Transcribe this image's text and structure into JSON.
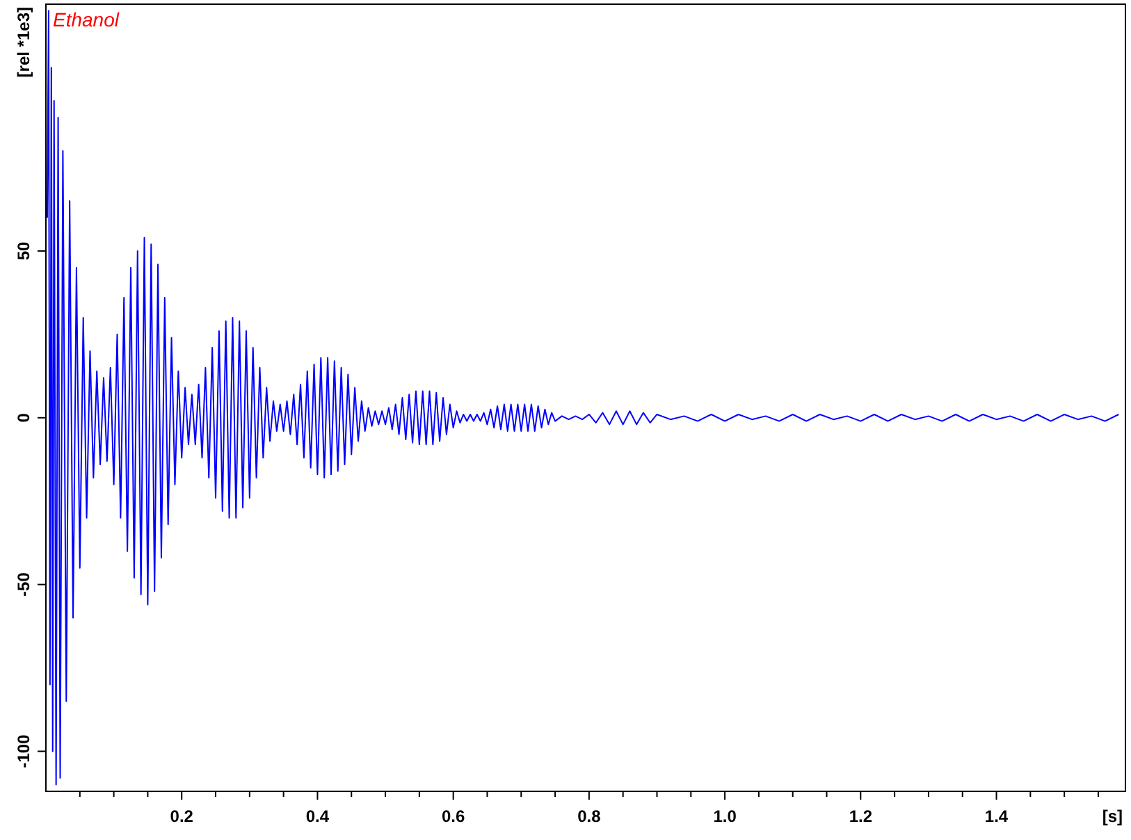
{
  "chart_data": {
    "type": "line",
    "xlabel": "[s]",
    "ylabel": "[rel *1e3]",
    "annotations": [
      "Ethanol"
    ],
    "xlim": [
      0,
      1.59
    ],
    "ylim": [
      -112,
      124
    ],
    "xticks": [
      {
        "value": 0.05,
        "label": null
      },
      {
        "value": 0.1,
        "label": null
      },
      {
        "value": 0.15,
        "label": null
      },
      0.2,
      {
        "value": 0.25,
        "label": null
      },
      {
        "value": 0.3,
        "label": null
      },
      {
        "value": 0.35,
        "label": null
      },
      0.4,
      {
        "value": 0.45,
        "label": null
      },
      {
        "value": 0.5,
        "label": null
      },
      {
        "value": 0.55,
        "label": null
      },
      0.6,
      {
        "value": 0.65,
        "label": null
      },
      {
        "value": 0.7,
        "label": null
      },
      {
        "value": 0.75,
        "label": null
      },
      0.8,
      {
        "value": 0.85,
        "label": null
      },
      {
        "value": 0.9,
        "label": null
      },
      {
        "value": 0.95,
        "label": null
      },
      {
        "value": 1,
        "label": "1.0"
      },
      {
        "value": 1.05,
        "label": null
      },
      {
        "value": 1.1,
        "label": null
      },
      {
        "value": 1.15,
        "label": null
      },
      1.2,
      {
        "value": 1.25,
        "label": null
      },
      {
        "value": 1.3,
        "label": null
      },
      {
        "value": 1.35,
        "label": null
      },
      1.4,
      {
        "value": 1.45,
        "label": null
      },
      {
        "value": 1.5,
        "label": null
      },
      {
        "value": 1.55,
        "label": null
      }
    ],
    "yticks": [
      -100,
      -50,
      0,
      50
    ],
    "grid": false,
    "marker": "none",
    "line_style": "solid",
    "series": [
      {
        "color": "#0000ff",
        "x": [
          0.002,
          0.004,
          0.006,
          0.008,
          0.01,
          0.012,
          0.015,
          0.018,
          0.021,
          0.025,
          0.03,
          0.035,
          0.04,
          0.045,
          0.05,
          0.055,
          0.06,
          0.065,
          0.07,
          0.075,
          0.08,
          0.085,
          0.09,
          0.095,
          0.1,
          0.105,
          0.11,
          0.115,
          0.12,
          0.125,
          0.13,
          0.135,
          0.14,
          0.145,
          0.15,
          0.155,
          0.16,
          0.165,
          0.17,
          0.175,
          0.18,
          0.185,
          0.19,
          0.195,
          0.2,
          0.205,
          0.21,
          0.215,
          0.22,
          0.225,
          0.23,
          0.235,
          0.24,
          0.245,
          0.25,
          0.255,
          0.26,
          0.265,
          0.27,
          0.275,
          0.28,
          0.285,
          0.29,
          0.295,
          0.3,
          0.305,
          0.31,
          0.315,
          0.32,
          0.325,
          0.33,
          0.335,
          0.34,
          0.345,
          0.35,
          0.355,
          0.36,
          0.365,
          0.37,
          0.375,
          0.38,
          0.385,
          0.39,
          0.395,
          0.4,
          0.405,
          0.41,
          0.415,
          0.42,
          0.425,
          0.43,
          0.435,
          0.44,
          0.445,
          0.45,
          0.455,
          0.46,
          0.465,
          0.47,
          0.475,
          0.48,
          0.485,
          0.49,
          0.495,
          0.5,
          0.505,
          0.51,
          0.515,
          0.52,
          0.525,
          0.53,
          0.535,
          0.54,
          0.545,
          0.55,
          0.555,
          0.56,
          0.565,
          0.57,
          0.575,
          0.58,
          0.585,
          0.59,
          0.595,
          0.6,
          0.605,
          0.61,
          0.615,
          0.62,
          0.625,
          0.63,
          0.635,
          0.64,
          0.645,
          0.65,
          0.655,
          0.66,
          0.665,
          0.67,
          0.675,
          0.68,
          0.685,
          0.69,
          0.695,
          0.7,
          0.705,
          0.71,
          0.715,
          0.72,
          0.725,
          0.73,
          0.735,
          0.74,
          0.745,
          0.75,
          0.76,
          0.77,
          0.78,
          0.79,
          0.8,
          0.81,
          0.82,
          0.83,
          0.84,
          0.85,
          0.86,
          0.87,
          0.88,
          0.89,
          0.9,
          0.92,
          0.94,
          0.96,
          0.98,
          1.0,
          1.02,
          1.04,
          1.06,
          1.08,
          1.1,
          1.12,
          1.14,
          1.16,
          1.18,
          1.2,
          1.22,
          1.24,
          1.26,
          1.28,
          1.3,
          1.32,
          1.34,
          1.36,
          1.38,
          1.4,
          1.42,
          1.44,
          1.46,
          1.48,
          1.5,
          1.52,
          1.54,
          1.56,
          1.58
        ],
        "values": [
          60,
          122,
          -80,
          105,
          -100,
          95,
          -110,
          90,
          -108,
          80,
          -85,
          65,
          -60,
          45,
          -45,
          30,
          -30,
          20,
          -18,
          14,
          -14,
          12,
          -13,
          15,
          -20,
          25,
          -30,
          36,
          -40,
          45,
          -48,
          50,
          -53,
          54,
          -56,
          52,
          -52,
          46,
          -42,
          36,
          -32,
          24,
          -20,
          14,
          -12,
          9,
          -8,
          7,
          -8,
          10,
          -12,
          15,
          -18,
          21,
          -24,
          26,
          -28,
          29,
          -30,
          30,
          -30,
          29,
          -27,
          26,
          -24,
          21,
          -18,
          15,
          -12,
          9,
          -7,
          5,
          -4,
          4,
          -4,
          5,
          -5,
          7,
          -8,
          10,
          -12,
          14,
          -15,
          16,
          -17,
          18,
          -18,
          18,
          -17,
          17,
          -16,
          15,
          -14,
          13,
          -11,
          9,
          -7,
          5,
          -4,
          3,
          -2.5,
          2,
          -2,
          2,
          -2,
          3,
          -3.5,
          4,
          -5,
          6,
          -6.5,
          7,
          -7.5,
          8,
          -8,
          8,
          -8,
          8,
          -8,
          7.5,
          -7,
          6,
          -5,
          4,
          -3,
          2,
          -1.5,
          1,
          -1,
          1,
          -1,
          1,
          -1,
          1.5,
          -2,
          2.5,
          -3,
          3.5,
          -3.5,
          4,
          -4,
          4,
          -4,
          4,
          -4,
          4,
          -4,
          4,
          -4,
          3.5,
          -3,
          2.5,
          -2,
          1.5,
          -1,
          0.5,
          -0.5,
          0.5,
          -0.5,
          1,
          -1.5,
          1.5,
          -2,
          2,
          -2,
          2,
          -2,
          1.5,
          -1.5,
          1,
          -0.5,
          0.5,
          -1,
          1,
          -1,
          1,
          -0.5,
          0.5,
          -1,
          1,
          -1,
          1,
          -0.5,
          0.5,
          -1,
          1,
          -1,
          1,
          -0.5,
          0.5,
          -1,
          1,
          -1,
          1,
          -0.5,
          0.5,
          -1,
          1,
          -1,
          1,
          -0.5,
          0.5,
          -1,
          1
        ]
      }
    ]
  }
}
